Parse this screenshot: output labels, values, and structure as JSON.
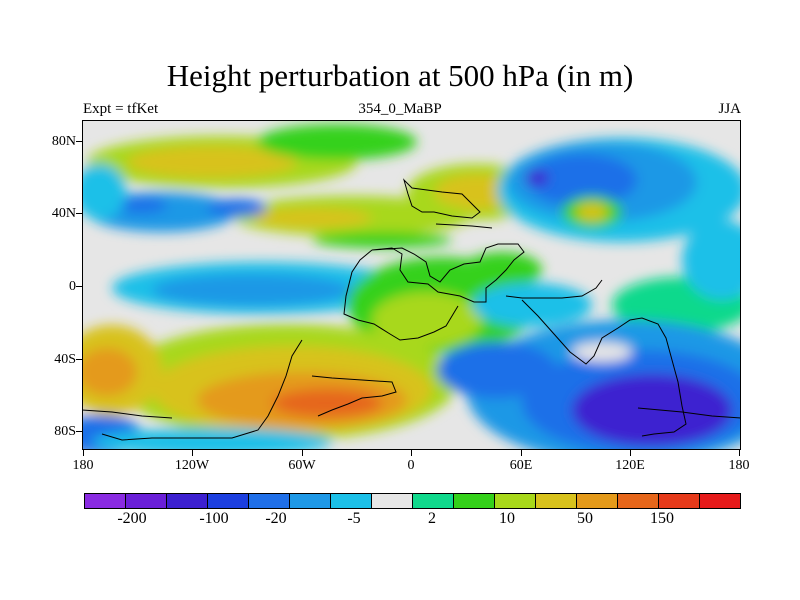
{
  "title": "Height perturbation at 500 hPa (in m)",
  "subtitle_left": "Expt = tfKet",
  "subtitle_center": "354_0_MaBP",
  "subtitle_right": "JJA",
  "lat_ticks": [
    "80N",
    "40N",
    "0",
    "40S",
    "80S"
  ],
  "lon_ticks": [
    "180",
    "120W",
    "60W",
    "0",
    "60E",
    "120E",
    "180"
  ],
  "colorbar": {
    "colors": [
      "#8a2be2",
      "#6a1fd8",
      "#3c20d0",
      "#1c3fe0",
      "#1f6fe8",
      "#1e98e6",
      "#1cc0e8",
      "#e6e6e6",
      "#10d98c",
      "#34d11a",
      "#a8d81a",
      "#d8c21c",
      "#e49a1a",
      "#e6661a",
      "#e63a1a",
      "#e61a1a"
    ],
    "labels": [
      "-200",
      "-100",
      "-20",
      "-5",
      "2",
      "10",
      "50",
      "150"
    ]
  }
}
